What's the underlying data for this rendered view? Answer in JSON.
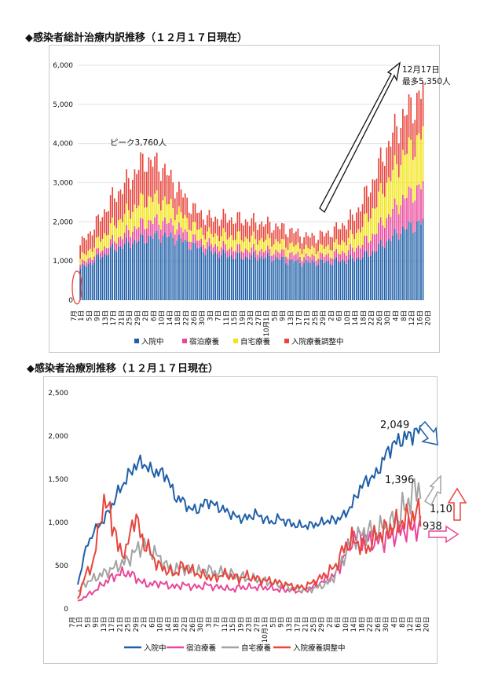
{
  "charts": [
    {
      "title": "◆感染者総計治療内訳推移（１２月１７日現在）",
      "ann_peak": "ピーク3,760人",
      "ann_latest_1": "12月17日",
      "ann_latest_2": "最多5,350人"
    },
    {
      "title": "◆感染者治療別推移（１２月１７日現在）",
      "labels": {
        "hospital": "2,049",
        "home": "1,396",
        "adjust": "1,107",
        "hotel": "938"
      }
    }
  ],
  "chart_data": [
    {
      "type": "bar",
      "stacked": true,
      "title": "◆感染者総計治療内訳推移（１２月１７日現在）",
      "x_month_label": "7月",
      "x_tick_labels": [
        "1日",
        "5日",
        "9日",
        "13日",
        "17日",
        "21日",
        "25日",
        "29日",
        "2日",
        "6日",
        "10日",
        "14日",
        "18日",
        "22日",
        "26日",
        "30日",
        "3日",
        "7日",
        "11日",
        "15日",
        "19日",
        "23日",
        "27日",
        "10月1日",
        "5日",
        "9日",
        "13日",
        "17日",
        "21日",
        "25日",
        "29日",
        "2日",
        "6日",
        "10日",
        "14日",
        "18日",
        "22日",
        "26日",
        "30日",
        "4日",
        "8日",
        "12日",
        "16日",
        "20日"
      ],
      "ylim": [
        0,
        6000
      ],
      "yticks": [
        0,
        1000,
        2000,
        3000,
        4000,
        5000,
        6000
      ],
      "grid": true,
      "legend_position": "bottom",
      "annotations": [
        "ピーク3,760人",
        "12月17日",
        "最多5,350人"
      ],
      "day_samples": [
        0,
        8,
        16,
        24,
        32,
        40,
        48,
        56,
        64,
        72,
        80,
        88,
        96,
        104,
        112,
        120,
        128,
        136,
        144,
        152,
        160,
        168,
        170
      ],
      "series": [
        {
          "name": "入院中",
          "color": "#1f5fa8",
          "values": [
            800,
            1050,
            1300,
            1450,
            1580,
            1650,
            1580,
            1380,
            1250,
            1150,
            1100,
            1100,
            1080,
            1000,
            960,
            970,
            1000,
            1050,
            1200,
            1500,
            1800,
            1950,
            2000
          ]
        },
        {
          "name": "宿泊療養",
          "color": "#e8489a",
          "values": [
            100,
            150,
            200,
            300,
            400,
            380,
            300,
            200,
            180,
            200,
            200,
            180,
            170,
            180,
            150,
            160,
            200,
            260,
            400,
            600,
            780,
            900,
            930
          ]
        },
        {
          "name": "自宅療養",
          "color": "#f2e416",
          "values": [
            150,
            250,
            400,
            500,
            600,
            550,
            400,
            300,
            250,
            300,
            300,
            280,
            260,
            240,
            200,
            200,
            230,
            350,
            600,
            900,
            1100,
            1250,
            1350
          ]
        },
        {
          "name": "入院療養調整中",
          "color": "#e8453c",
          "values": [
            350,
            500,
            700,
            800,
            1000,
            850,
            600,
            450,
            400,
            450,
            450,
            420,
            390,
            360,
            300,
            320,
            400,
            500,
            700,
            900,
            1000,
            1050,
            1070
          ]
        }
      ]
    },
    {
      "type": "line",
      "title": "◆感染者治療別推移（１２月１７日現在）",
      "x_month_label": "7月",
      "x_tick_labels": [
        "1日",
        "5日",
        "9日",
        "13日",
        "17日",
        "21日",
        "25日",
        "29日",
        "2日",
        "6日",
        "10日",
        "14日",
        "18日",
        "22日",
        "26日",
        "30日",
        "3日",
        "7日",
        "11日",
        "15日",
        "19日",
        "23日",
        "27日",
        "10月1日",
        "5日",
        "9日",
        "13日",
        "17日",
        "21日",
        "25日",
        "29日",
        "2日",
        "6日",
        "10日",
        "14日",
        "18日",
        "22日",
        "26日",
        "30日",
        "4日",
        "8日",
        "12日",
        "16日",
        "20日"
      ],
      "ylim": [
        0,
        2500
      ],
      "yticks": [
        0,
        500,
        1000,
        1500,
        2000,
        2500
      ],
      "grid": false,
      "legend_position": "bottom",
      "day_samples": [
        0,
        4,
        8,
        12,
        16,
        20,
        24,
        28,
        32,
        36,
        40,
        44,
        48,
        52,
        56,
        60,
        64,
        68,
        72,
        76,
        80,
        84,
        88,
        92,
        96,
        100,
        104,
        108,
        112,
        116,
        120,
        124,
        128,
        132,
        136,
        140,
        144,
        148,
        152,
        156,
        160,
        164,
        168,
        170
      ],
      "series": [
        {
          "name": "入院中",
          "color": "#1f5fa8",
          "values": [
            280,
            700,
            900,
            1000,
            1150,
            1350,
            1500,
            1650,
            1700,
            1600,
            1580,
            1550,
            1300,
            1250,
            1150,
            1150,
            1250,
            1200,
            1150,
            1100,
            1050,
            1050,
            1100,
            1050,
            1000,
            1050,
            1000,
            970,
            960,
            970,
            990,
            1020,
            1030,
            1080,
            1200,
            1400,
            1500,
            1550,
            1750,
            1900,
            1950,
            2000,
            2050,
            2049
          ]
        },
        {
          "name": "宿泊療養",
          "color": "#e8489a",
          "values": [
            80,
            150,
            200,
            280,
            350,
            400,
            420,
            380,
            300,
            280,
            300,
            280,
            250,
            280,
            260,
            250,
            280,
            250,
            250,
            220,
            250,
            250,
            250,
            250,
            240,
            220,
            220,
            210,
            200,
            250,
            300,
            350,
            400,
            600,
            800,
            850,
            800,
            780,
            800,
            850,
            900,
            930,
            940,
            938
          ]
        },
        {
          "name": "自宅療養",
          "color": "#a3a3a3",
          "values": [
            200,
            300,
            350,
            400,
            450,
            500,
            550,
            650,
            750,
            700,
            600,
            500,
            450,
            480,
            450,
            430,
            460,
            420,
            420,
            400,
            380,
            350,
            350,
            330,
            300,
            280,
            250,
            230,
            220,
            230,
            260,
            300,
            400,
            600,
            800,
            850,
            900,
            900,
            950,
            1000,
            1100,
            1250,
            1400,
            1396
          ]
        },
        {
          "name": "入院療養調整中",
          "color": "#e8453c",
          "values": [
            120,
            400,
            550,
            1200,
            1150,
            700,
            650,
            1100,
            800,
            650,
            500,
            450,
            400,
            500,
            450,
            400,
            380,
            350,
            400,
            380,
            350,
            380,
            350,
            330,
            320,
            300,
            280,
            250,
            250,
            300,
            350,
            420,
            500,
            700,
            800,
            750,
            700,
            850,
            900,
            950,
            1000,
            1050,
            1100,
            1107
          ]
        }
      ]
    }
  ]
}
